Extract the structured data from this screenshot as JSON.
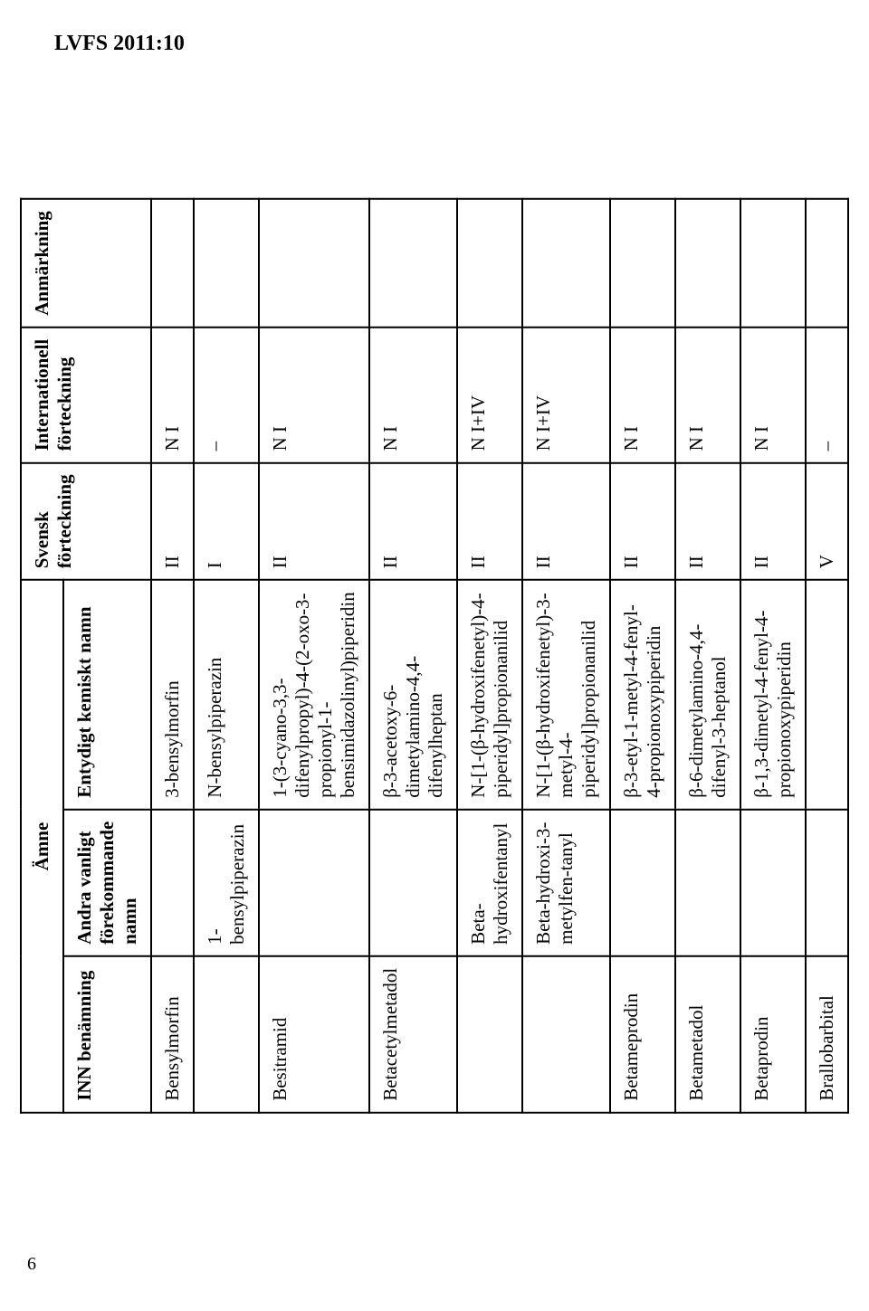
{
  "doc_id": "LVFS 2011:10",
  "page_number": "6",
  "headers": {
    "amne": "Ämne",
    "inn": "INN benämning",
    "alt": "Andra vanligt\nförekommande namn",
    "chem": "Entydigt kemiskt namn",
    "svensk": "Svensk\nförteckning",
    "intl": "Internationell\nförteckning",
    "note": "Anmärkning"
  },
  "rows": [
    {
      "inn": "Bensylmorfin",
      "alt": "",
      "chem": "3-bensylmorfin",
      "sv": "II",
      "intl": "N I",
      "note": ""
    },
    {
      "inn": "",
      "alt": "1-bensylpiperazin",
      "chem": "N-bensylpiperazin",
      "sv": "I",
      "intl": "–",
      "note": ""
    },
    {
      "inn": "Besitramid",
      "alt": "",
      "chem": "1-(3-cyano-3,3-difenylpropyl)-4-(2-oxo-3-propionyl-1-bensimidazolinyl)piperidin",
      "sv": "II",
      "intl": "N I",
      "note": ""
    },
    {
      "inn": "Betacetylmetadol",
      "alt": "",
      "chem": "β-3-acetoxy-6-dimetylamino-4,4-difenylheptan",
      "sv": "II",
      "intl": "N I",
      "note": ""
    },
    {
      "inn": "",
      "alt": "Beta-hydroxifentanyl",
      "chem": "N-[1-(β-hydroxifenetyl)-4-piperidyl]propionanilid",
      "sv": "II",
      "intl": "N I+IV",
      "note": ""
    },
    {
      "inn": "",
      "alt": "Beta-hydroxi-3-metylfen-tanyl",
      "chem": "N-[1-(β-hydroxifenetyl)-3-metyl-4-piperidyl]propionanilid",
      "sv": "II",
      "intl": "N I+IV",
      "note": ""
    },
    {
      "inn": "Betameprodin",
      "alt": "",
      "chem": "β-3-etyl-1-metyl-4-fenyl-4-propionoxypiperidin",
      "sv": "II",
      "intl": "N I",
      "note": ""
    },
    {
      "inn": "Betametadol",
      "alt": "",
      "chem": "β-6-dimetylamino-4,4-difenyl-3-heptanol",
      "sv": "II",
      "intl": "N I",
      "note": ""
    },
    {
      "inn": "Betaprodin",
      "alt": "",
      "chem": "β-1,3-dimetyl-4-fenyl-4-propionoxypiperidin",
      "sv": "II",
      "intl": "N I",
      "note": ""
    },
    {
      "inn": "Brallobarbital",
      "alt": "",
      "chem": "",
      "sv": "V",
      "intl": "–",
      "note": ""
    }
  ]
}
